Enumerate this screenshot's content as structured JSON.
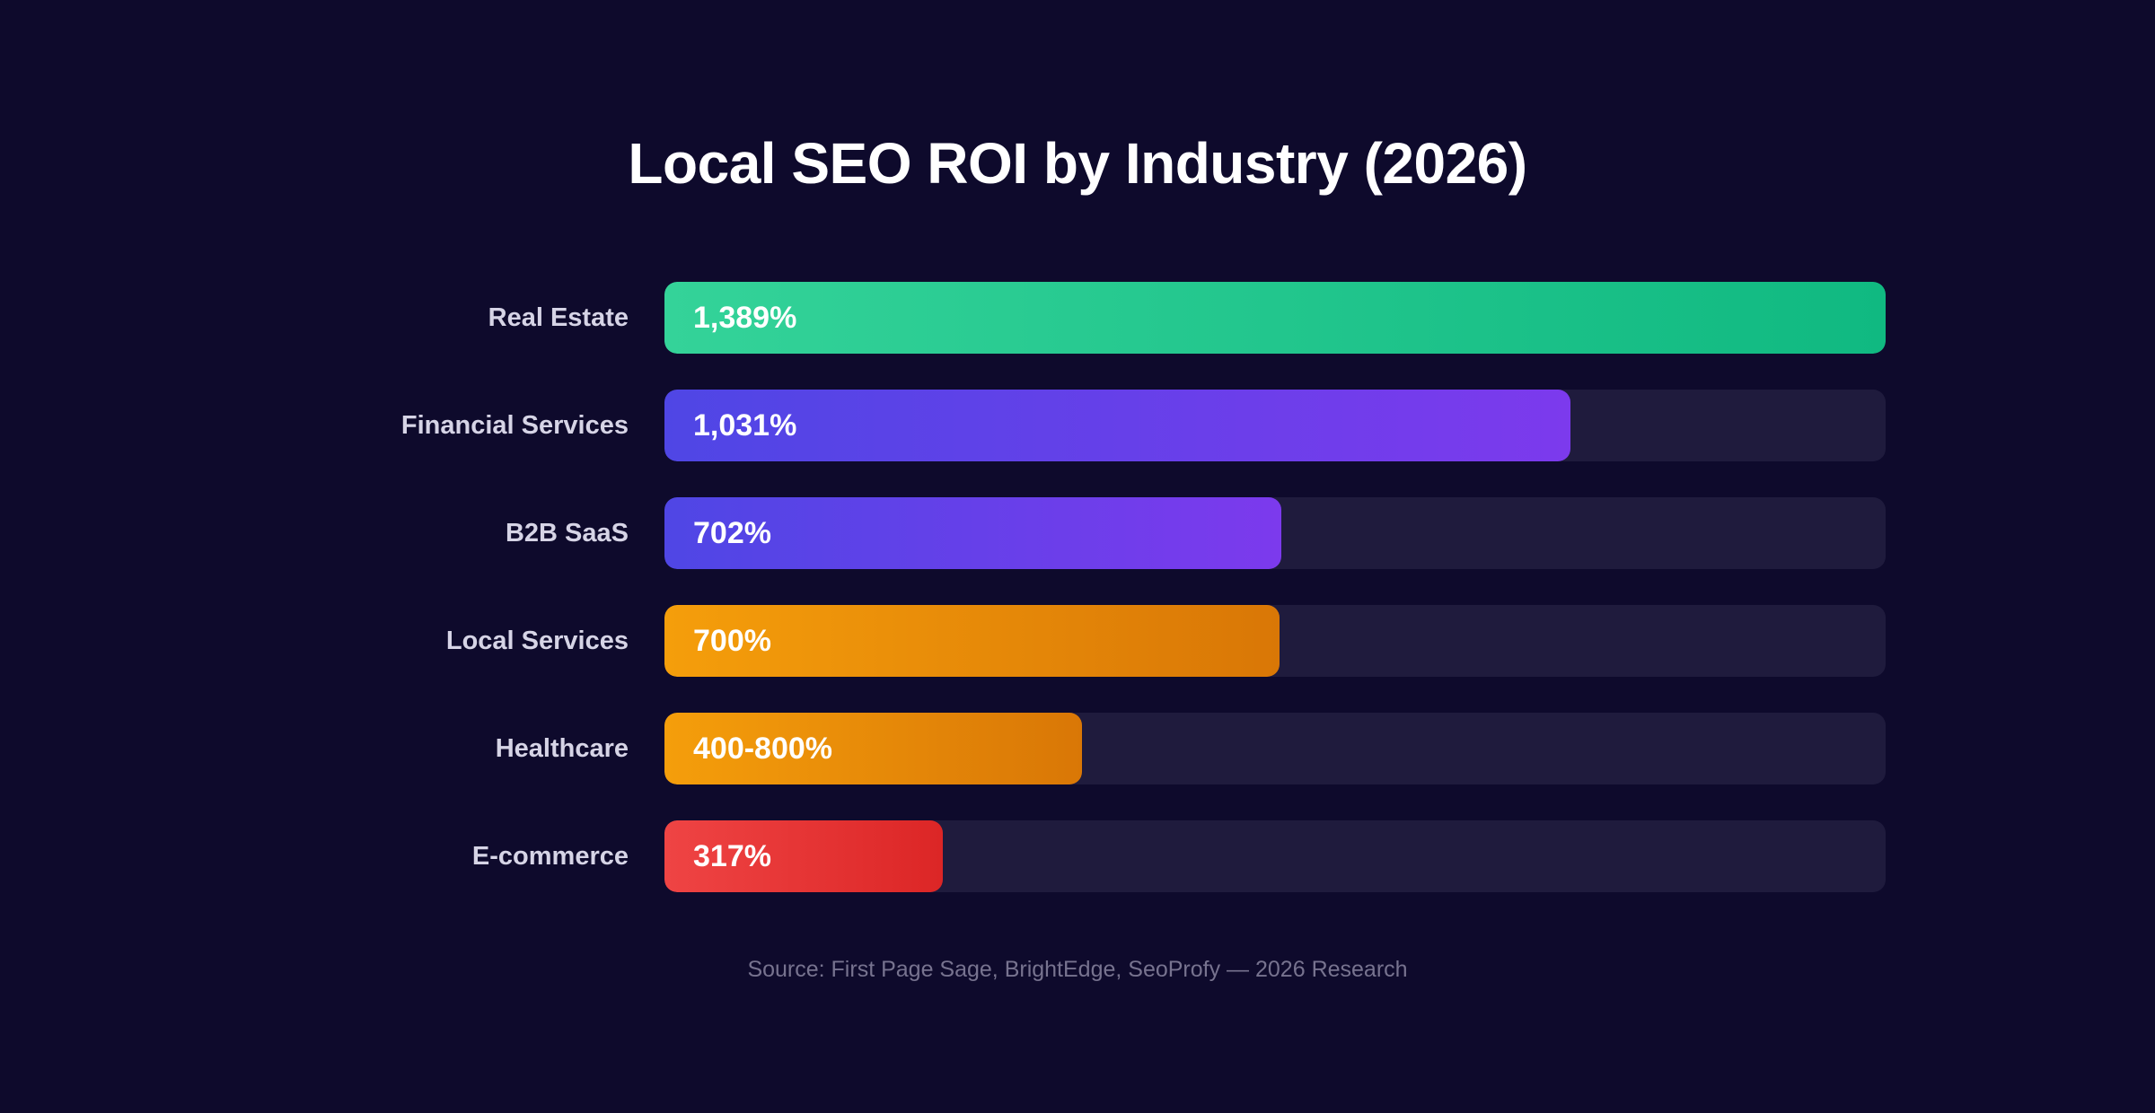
{
  "page": {
    "background": "#0e0a2c",
    "source": "Source: First Page Sage, BrightEdge, SeoProfy — 2026 Research"
  },
  "chart_data": {
    "type": "bar",
    "orientation": "horizontal",
    "title": "Local SEO ROI by Industry (2026)",
    "xlabel": "",
    "ylabel": "",
    "grid": false,
    "legend": "none",
    "unit": "%",
    "xlim": [
      0,
      1389
    ],
    "track_color": "#1f1b3d",
    "categories": [
      "Real Estate",
      "Financial Services",
      "B2B SaaS",
      "Local Services",
      "Healthcare",
      "E-commerce"
    ],
    "values": [
      1389,
      1031,
      702,
      700,
      475,
      317
    ],
    "value_labels": [
      "1,389%",
      "1,031%",
      "702%",
      "700%",
      "400-800%",
      "317%"
    ],
    "bar_colors": [
      [
        "#34d399",
        "#10b981"
      ],
      [
        "#4f46e5",
        "#7c3aed"
      ],
      [
        "#4f46e5",
        "#7c3aed"
      ],
      [
        "#f59e0b",
        "#d97706"
      ],
      [
        "#f59e0b",
        "#d97706"
      ],
      [
        "#ef4444",
        "#dc2626"
      ]
    ]
  }
}
